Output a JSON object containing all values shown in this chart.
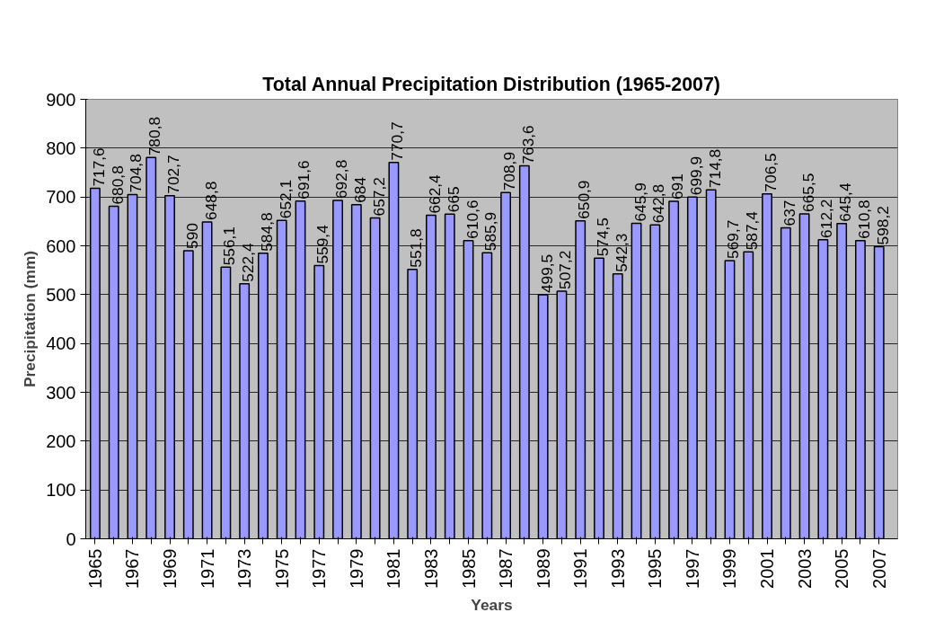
{
  "chart_data": {
    "type": "bar",
    "title": "Total Annual Precipitation Distribution (1965-2007)",
    "xlabel": "Years",
    "ylabel": "Precipitation (mm)",
    "categories": [
      "1965",
      null,
      "1967",
      null,
      "1969",
      null,
      "1971",
      null,
      "1973",
      null,
      "1975",
      null,
      "1977",
      null,
      "1979",
      null,
      "1981",
      null,
      "1983",
      null,
      "1985",
      null,
      "1987",
      null,
      "1989",
      null,
      "1991",
      null,
      "1993",
      null,
      "1995",
      null,
      "1997",
      null,
      "1999",
      null,
      "2001",
      null,
      "2003",
      null,
      "2005",
      null,
      "2007"
    ],
    "values": [
      717.6,
      680.8,
      704.8,
      780.8,
      702.7,
      590,
      648.8,
      556.1,
      522.4,
      584.8,
      652.1,
      691.6,
      559.4,
      692.8,
      684,
      657.2,
      770.7,
      551.8,
      662.4,
      665,
      610.6,
      585.9,
      708.9,
      763.6,
      499.5,
      507.2,
      650.9,
      574.5,
      542.3,
      645.9,
      642.8,
      691,
      699.9,
      714.8,
      569.7,
      587.4,
      706.5,
      637,
      665.5,
      612.2,
      645.4,
      610.8,
      598.2
    ],
    "value_labels": [
      "717,6",
      "680,8",
      "704,8",
      "780,8",
      "702,7",
      "590",
      "648,8",
      "556,1",
      "522,4",
      "584,8",
      "652,1",
      "691,6",
      "559,4",
      "692,8",
      "684",
      "657,2",
      "770,7",
      "551,8",
      "662,4",
      "665",
      "610,6",
      "585,9",
      "708,9",
      "763,6",
      "499,5",
      "507,2",
      "650,9",
      "574,5",
      "542,3",
      "645,9",
      "642,8",
      "691",
      "699,9",
      "714,8",
      "569,7",
      "587,4",
      "706,5",
      "637",
      "665,5",
      "612,2",
      "645,4",
      "610,8",
      "598,2"
    ],
    "color": "#9999ff",
    "ylim": [
      0,
      900
    ],
    "yticks": [
      0,
      100,
      200,
      300,
      400,
      500,
      600,
      700,
      800,
      900
    ],
    "grid": "y"
  }
}
